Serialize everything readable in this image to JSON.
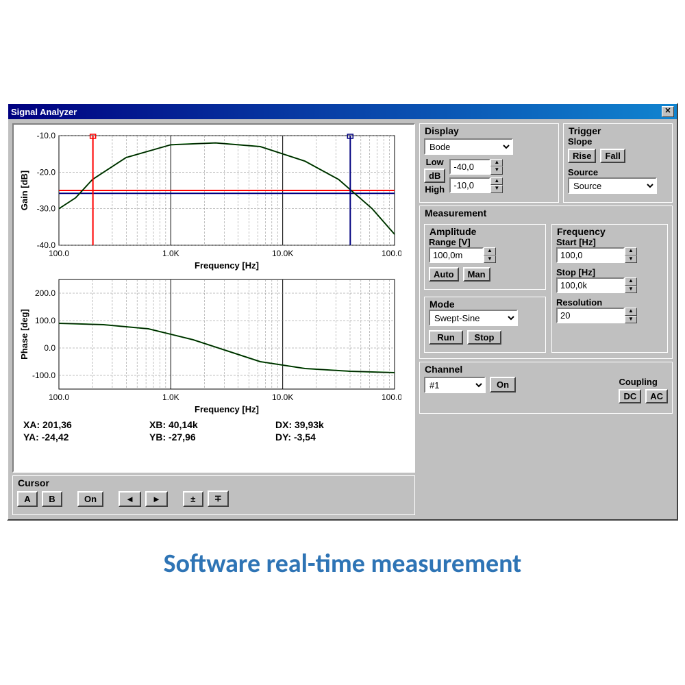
{
  "window": {
    "title": "Signal Analyzer"
  },
  "caption": "Software real-time measurement",
  "colors": {
    "window_bg": "#c0c0c0",
    "titlebar_start": "#000080",
    "titlebar_end": "#1084d0",
    "chart_bg": "#ffffff",
    "grid": "#808080",
    "cursor_a": "#ff0000",
    "cursor_b": "#000080",
    "gain_curve": "#006000",
    "phase_curve": "#000000",
    "horiz_line": "#ff0000",
    "horiz_line2": "#000080",
    "caption_color": "#2e74b5"
  },
  "gain_chart": {
    "ylabel": "Gain [dB]",
    "xlabel": "Frequency [Hz]",
    "yticks": [
      -40.0,
      -30.0,
      -20.0,
      -10.0
    ],
    "ytick_labels": [
      "-40.0",
      "-30.0",
      "-20.0",
      "-10.0"
    ],
    "xtick_labels": [
      "100.0",
      "1.0K",
      "10.0K",
      "100.0K"
    ],
    "xlim_log": [
      2,
      5
    ],
    "ylim": [
      -40,
      -10
    ],
    "curve": [
      [
        2.0,
        -30
      ],
      [
        2.15,
        -27
      ],
      [
        2.3,
        -22
      ],
      [
        2.6,
        -16
      ],
      [
        3.0,
        -12.5
      ],
      [
        3.4,
        -12
      ],
      [
        3.8,
        -13
      ],
      [
        4.2,
        -17
      ],
      [
        4.5,
        -22
      ],
      [
        4.8,
        -30
      ],
      [
        5.0,
        -37
      ]
    ],
    "cursor_a_x": 2.304,
    "cursor_b_x": 4.604,
    "horiz_y": -25,
    "horiz_y2": -25.8
  },
  "phase_chart": {
    "ylabel": "Phase [deg]",
    "xlabel": "Frequency [Hz]",
    "yticks": [
      -100,
      0,
      100,
      200
    ],
    "ytick_labels": [
      "-100.0",
      "0.0",
      "100.0",
      "200.0"
    ],
    "xtick_labels": [
      "100.0",
      "1.0K",
      "10.0K",
      "100.0K"
    ],
    "xlim_log": [
      2,
      5
    ],
    "ylim": [
      -150,
      250
    ],
    "curve": [
      [
        2.0,
        90
      ],
      [
        2.4,
        85
      ],
      [
        2.8,
        70
      ],
      [
        3.2,
        30
      ],
      [
        3.5,
        -10
      ],
      [
        3.8,
        -50
      ],
      [
        4.2,
        -75
      ],
      [
        4.6,
        -85
      ],
      [
        5.0,
        -90
      ]
    ]
  },
  "readout": {
    "xa_label": "XA:",
    "xa": "201,36",
    "xb_label": "XB:",
    "xb": "40,14k",
    "dx_label": "DX:",
    "dx": "39,93k",
    "ya_label": "YA:",
    "ya": "-24,42",
    "yb_label": "YB:",
    "yb": "-27,96",
    "dy_label": "DY:",
    "dy": "-3,54"
  },
  "cursor_group": {
    "title": "Cursor",
    "btn_a": "A",
    "btn_b": "B",
    "btn_on": "On",
    "btn_left": "◄",
    "btn_right": "►",
    "btn_up": "±",
    "btn_down": "∓"
  },
  "display_group": {
    "title": "Display",
    "select_value": "Bode",
    "low_label": "Low",
    "db_btn": "dB",
    "high_label": "High",
    "low_value": "-40,0",
    "high_value": "-10,0"
  },
  "trigger_group": {
    "title": "Trigger",
    "slope_label": "Slope",
    "rise": "Rise",
    "fall": "Fall",
    "source_label": "Source",
    "source_value": "Source"
  },
  "measurement_group": {
    "title": "Measurement",
    "amplitude_label": "Amplitude",
    "range_label": "Range [V]",
    "range_value": "100,0m",
    "auto": "Auto",
    "man": "Man",
    "mode_label": "Mode",
    "mode_value": "Swept-Sine",
    "run": "Run",
    "stop": "Stop",
    "frequency_label": "Frequency",
    "start_label": "Start [Hz]",
    "start_value": "100,0",
    "stop_label": "Stop [Hz]",
    "stop_value": "100,0k",
    "resolution_label": "Resolution",
    "resolution_value": "20"
  },
  "channel_group": {
    "title": "Channel",
    "value": "#1",
    "on": "On",
    "coupling_label": "Coupling",
    "dc": "DC",
    "ac": "AC"
  }
}
